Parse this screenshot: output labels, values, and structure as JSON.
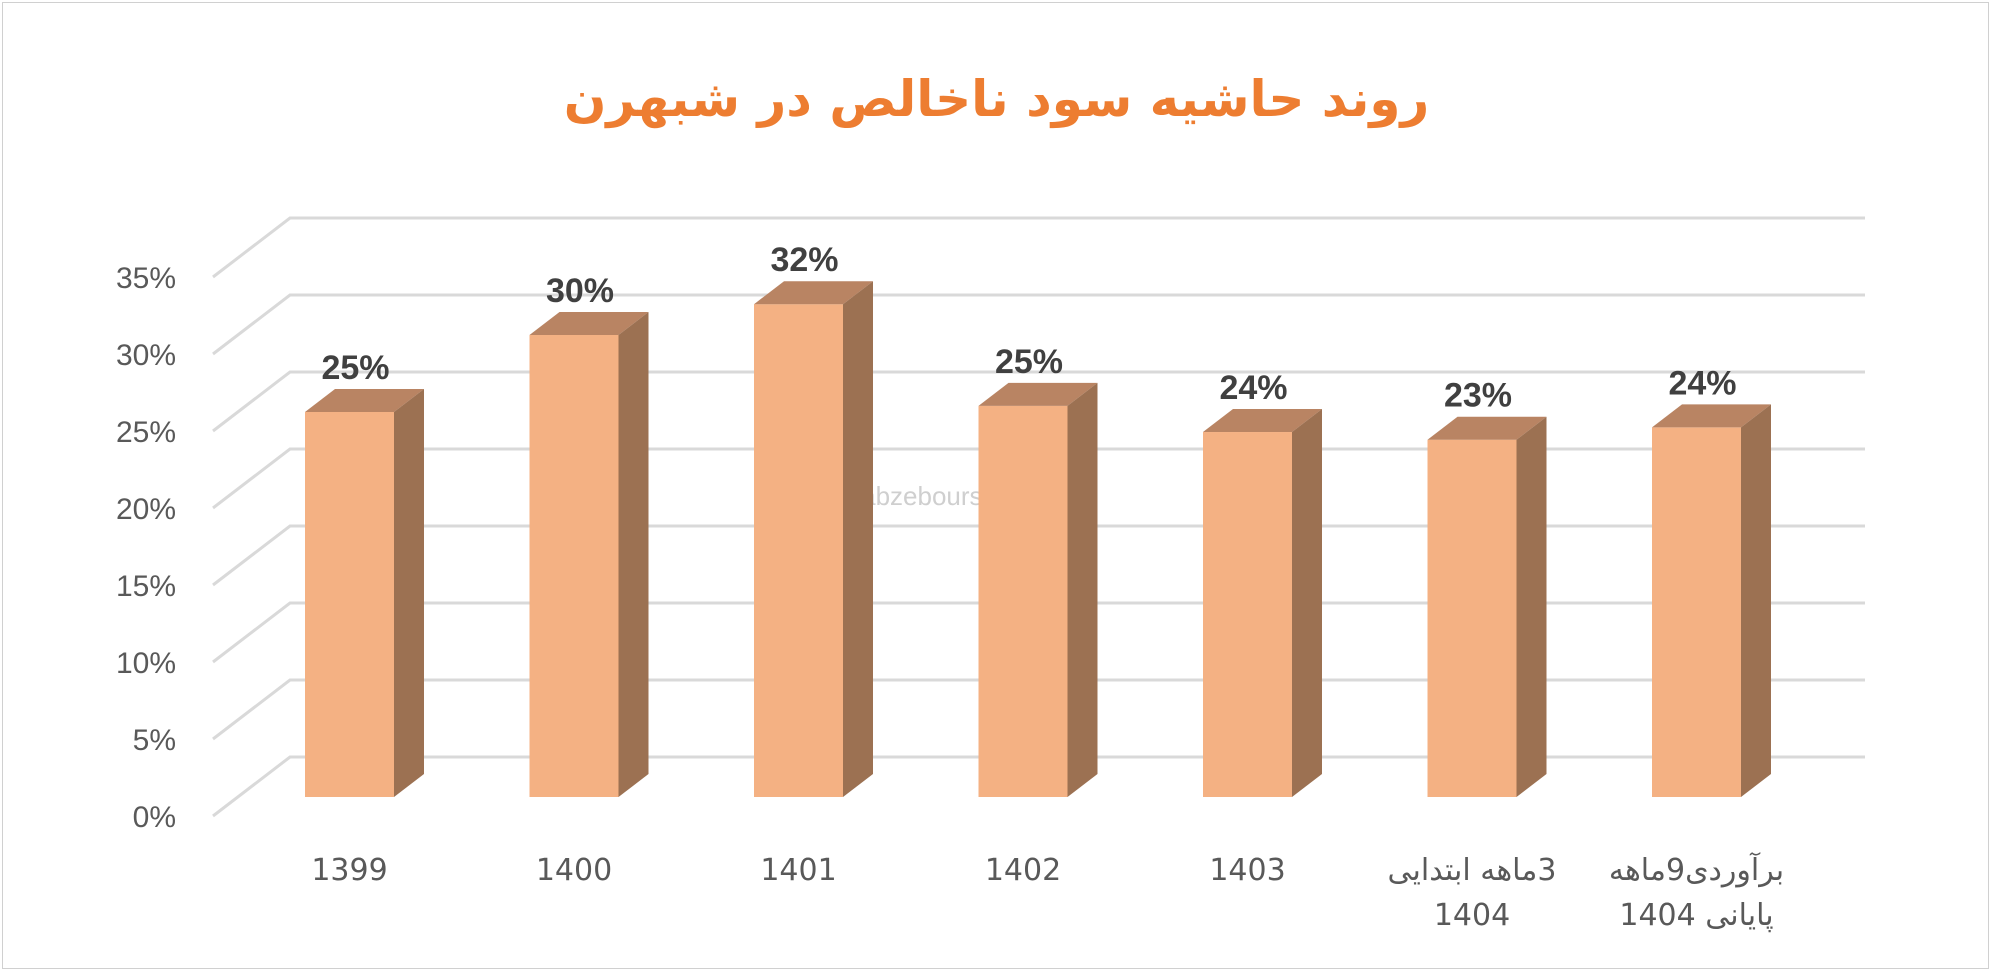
{
  "chart_data": {
    "type": "bar",
    "style": "3d-column",
    "title": "روند حاشیه سود ناخالص در شبهرن",
    "categories": [
      [
        "1399"
      ],
      [
        "1400"
      ],
      [
        "1401"
      ],
      [
        "1402"
      ],
      [
        "1403"
      ],
      [
        "3ماهه ابتدایی",
        "1404"
      ],
      [
        "برآوردی9ماهه",
        "پایانی 1404"
      ]
    ],
    "values": [
      25,
      30,
      32,
      25.4,
      23.7,
      23.2,
      24.0
    ],
    "data_labels": [
      "25%",
      "30%",
      "32%",
      "25%",
      "24%",
      "23%",
      "24%"
    ],
    "y_ticks": [
      "0%",
      "5%",
      "10%",
      "15%",
      "20%",
      "25%",
      "30%",
      "35%"
    ],
    "ylim": [
      0,
      35
    ],
    "grid": true,
    "xlabel": "",
    "ylabel": "",
    "colors": {
      "title": "#ED7D31",
      "bar_front": "#F4B183",
      "bar_top": "#B98463",
      "bar_side": "#9C7152",
      "grid": "#D9D9D9"
    },
    "watermark": "nabzebourse.com"
  }
}
